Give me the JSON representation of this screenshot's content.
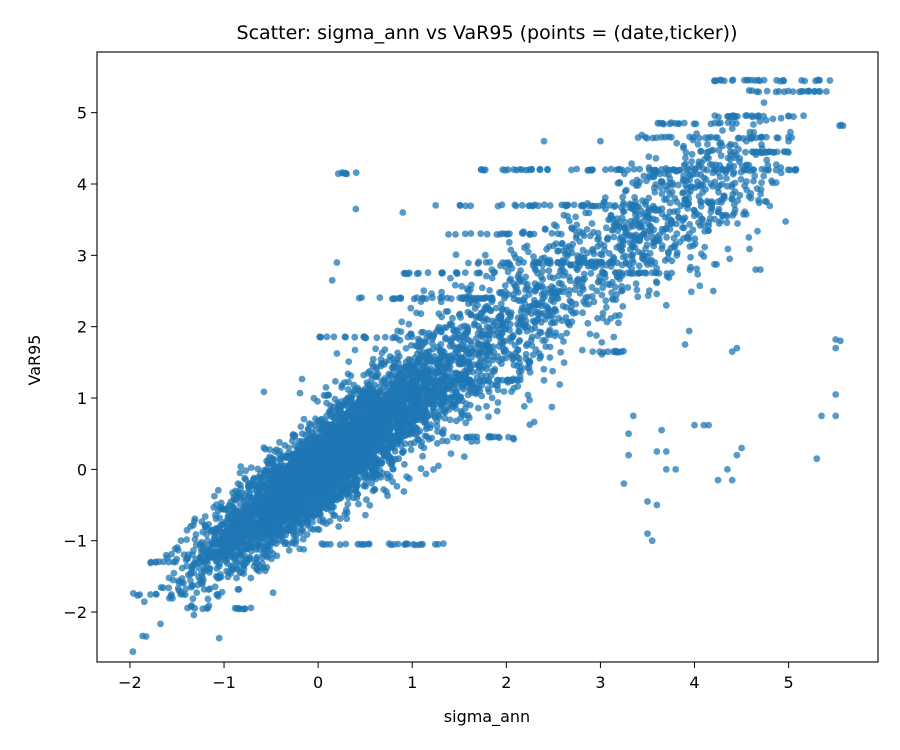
{
  "chart_data": {
    "type": "scatter",
    "title": "Scatter: sigma_ann vs VaR95 (points = (date,ticker))",
    "xlabel": "sigma_ann",
    "ylabel": "VaR95",
    "xlim": [
      -2.35,
      5.95
    ],
    "ylim": [
      -2.7,
      5.85
    ],
    "x_ticks": [
      -2,
      -1,
      0,
      1,
      2,
      3,
      4,
      5
    ],
    "y_ticks": [
      -2,
      -1,
      0,
      1,
      2,
      3,
      4,
      5
    ],
    "grid": false,
    "legend": "none",
    "point_color": "#1f77b4",
    "point_alpha": 0.75,
    "series": [
      {
        "clusters": [
          {
            "cx": -0.2,
            "cy": -0.25,
            "sx": 0.55,
            "sy": 0.6,
            "rho": 0.85,
            "count": 2600
          },
          {
            "cx": 0.4,
            "cy": 0.4,
            "sx": 0.5,
            "sy": 0.55,
            "rho": 0.8,
            "count": 1600
          },
          {
            "cx": 1.2,
            "cy": 1.2,
            "sx": 0.55,
            "sy": 0.55,
            "rho": 0.6,
            "count": 700
          },
          {
            "cx": 2.2,
            "cy": 2.3,
            "sx": 0.55,
            "sy": 0.55,
            "rho": 0.55,
            "count": 450
          },
          {
            "cx": 3.4,
            "cy": 3.3,
            "sx": 0.55,
            "sy": 0.55,
            "rho": 0.5,
            "count": 350
          },
          {
            "cx": 4.1,
            "cy": 3.9,
            "sx": 0.45,
            "sy": 0.45,
            "rho": 0.4,
            "count": 250
          }
        ],
        "rows": [
          {
            "y": 5.45,
            "x0": 4.15,
            "x1": 5.55
          },
          {
            "y": 5.3,
            "x0": 4.45,
            "x1": 5.45
          },
          {
            "y": 4.95,
            "x0": 4.1,
            "x1": 5.2
          },
          {
            "y": 4.85,
            "x0": 3.6,
            "x1": 4.5
          },
          {
            "y": 4.82,
            "x0": 5.45,
            "x1": 5.58
          },
          {
            "y": 4.65,
            "x0": 3.45,
            "x1": 5.1
          },
          {
            "y": 4.45,
            "x0": 3.9,
            "x1": 5.0
          },
          {
            "y": 4.2,
            "x0": 1.7,
            "x1": 3.7
          },
          {
            "y": 4.15,
            "x0": 0.15,
            "x1": 0.45
          },
          {
            "y": 4.2,
            "x0": 3.5,
            "x1": 5.1
          },
          {
            "y": 3.7,
            "x0": 1.5,
            "x1": 3.3
          },
          {
            "y": 3.3,
            "x0": 1.3,
            "x1": 2.6
          },
          {
            "y": 2.9,
            "x0": 1.7,
            "x1": 3.3
          },
          {
            "y": 2.75,
            "x0": 0.9,
            "x1": 1.8
          },
          {
            "y": 2.75,
            "x0": 3.0,
            "x1": 3.8
          },
          {
            "y": 2.4,
            "x0": 0.4,
            "x1": 2.0
          },
          {
            "y": 1.85,
            "x0": 0.0,
            "x1": 1.0
          },
          {
            "y": 1.65,
            "x0": 2.8,
            "x1": 3.3
          },
          {
            "y": 1.25,
            "x0": 1.0,
            "x1": 2.5
          },
          {
            "y": 0.45,
            "x0": 1.4,
            "x1": 2.1
          },
          {
            "y": -1.3,
            "x0": -1.85,
            "x1": -1.5
          },
          {
            "y": -1.75,
            "x0": -1.8,
            "x1": -1.4
          },
          {
            "y": -1.95,
            "x0": -1.4,
            "x1": -0.7
          },
          {
            "y": -1.05,
            "x0": 0.0,
            "x1": 1.4
          }
        ],
        "scattered_points": [
          [
            3.3,
            0.5
          ],
          [
            3.3,
            0.2
          ],
          [
            3.25,
            -0.2
          ],
          [
            3.35,
            0.75
          ],
          [
            3.5,
            -0.45
          ],
          [
            3.5,
            -0.9
          ],
          [
            3.55,
            -1.0
          ],
          [
            3.6,
            -0.5
          ],
          [
            3.6,
            0.25
          ],
          [
            3.65,
            0.55
          ],
          [
            3.7,
            0.0
          ],
          [
            3.7,
            0.25
          ],
          [
            3.8,
            0.0
          ],
          [
            4.0,
            0.62
          ],
          [
            4.1,
            0.62
          ],
          [
            4.15,
            0.62
          ],
          [
            4.25,
            -0.15
          ],
          [
            4.4,
            -0.15
          ],
          [
            4.35,
            0.0
          ],
          [
            4.45,
            0.2
          ],
          [
            4.5,
            0.3
          ],
          [
            4.4,
            1.65
          ],
          [
            4.45,
            1.7
          ],
          [
            4.65,
            2.8
          ],
          [
            4.7,
            2.8
          ],
          [
            5.3,
            0.15
          ],
          [
            5.35,
            0.75
          ],
          [
            5.5,
            0.75
          ],
          [
            5.5,
            1.05
          ],
          [
            5.5,
            1.7
          ],
          [
            5.55,
            1.8
          ],
          [
            5.5,
            1.82
          ],
          [
            0.2,
            2.9
          ],
          [
            0.15,
            2.65
          ],
          [
            0.4,
            3.65
          ],
          [
            0.9,
            3.6
          ],
          [
            1.25,
            3.7
          ],
          [
            2.4,
            4.6
          ],
          [
            3.0,
            4.6
          ],
          [
            3.4,
            4.65
          ],
          [
            5.0,
            4.6
          ],
          [
            3.9,
            1.75
          ],
          [
            3.7,
            2.3
          ],
          [
            4.2,
            2.5
          ]
        ]
      }
    ]
  }
}
